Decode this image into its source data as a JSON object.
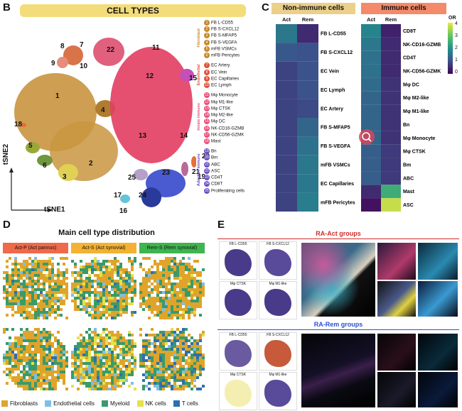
{
  "panel_b": {
    "letter": "B",
    "title": "CELL TYPES",
    "axis_y": "tSNE2",
    "axis_x": "tSNE1",
    "cluster_numbers": [
      "1",
      "2",
      "3",
      "4",
      "5",
      "6",
      "7",
      "8",
      "9",
      "10",
      "11",
      "12",
      "13",
      "14",
      "15",
      "16",
      "17",
      "18",
      "19",
      "20",
      "21",
      "22",
      "23",
      "24",
      "25"
    ],
    "groups": [
      {
        "name": "Fibroblast",
        "color": "#c88a2d",
        "items": [
          {
            "n": "1",
            "label": "FB L-CD55"
          },
          {
            "n": "2",
            "label": "FB S-CXCL12"
          },
          {
            "n": "3",
            "label": "FB S-MFAP5"
          },
          {
            "n": "4",
            "label": "FB S-VEGFA"
          },
          {
            "n": "5",
            "label": "mFB VSMCs"
          },
          {
            "n": "6",
            "label": "mFB Pericytes"
          }
        ]
      },
      {
        "name": "Endothelial",
        "color": "#e0533a",
        "items": [
          {
            "n": "7",
            "label": "EC Artery"
          },
          {
            "n": "8",
            "label": "EC Vein"
          },
          {
            "n": "9",
            "label": "EC Capillaries"
          },
          {
            "n": "10",
            "label": "EC Lymph"
          }
        ]
      },
      {
        "name": "Innate immune",
        "color": "#e8507a",
        "items": [
          {
            "n": "11",
            "label": "Mφ Monocyte"
          },
          {
            "n": "12",
            "label": "Mφ M1-like"
          },
          {
            "n": "13",
            "label": "Mφ CTSK"
          },
          {
            "n": "14",
            "label": "Mφ M2-like"
          },
          {
            "n": "15",
            "label": "Mφ DC"
          },
          {
            "n": "16",
            "label": "NK-CD16-GZMB"
          },
          {
            "n": "17",
            "label": "NK-CD56-GZMK"
          },
          {
            "n": "18",
            "label": "Mast"
          }
        ]
      },
      {
        "name": "Adaptive immune",
        "color": "#6a4fc4",
        "items": [
          {
            "n": "19",
            "label": "Bn"
          },
          {
            "n": "20",
            "label": "Bm"
          },
          {
            "n": "21",
            "label": "ABC"
          },
          {
            "n": "22",
            "label": "ASC"
          },
          {
            "n": "23",
            "label": "CD4T"
          },
          {
            "n": "24",
            "label": "CD8T"
          },
          {
            "n": "25",
            "label": "Proliferating cells"
          }
        ]
      }
    ]
  },
  "panel_c": {
    "letter": "C",
    "nonimmune_title": "Non-immune cells",
    "immune_title": "Immune cells",
    "col_act": "Act",
    "col_rem": "Rem",
    "colorbar_title": "OR",
    "colorbar_ticks": [
      "4",
      "3",
      "2",
      "1",
      "0"
    ],
    "chart_data": {
      "type": "heatmap",
      "columns": [
        "Act",
        "Rem"
      ],
      "nonimmune": {
        "rows": [
          "FB L-CD55",
          "FB S-CXCL12",
          "EC Vein",
          "EC Lymph",
          "EC Artery",
          "FB S-MFAP5",
          "FB S-VEGFA",
          "mFB VSMCs",
          "EC Capillaries",
          "mFB Pericytes"
        ],
        "values": [
          [
            1.6,
            0.5
          ],
          [
            1.1,
            1.0
          ],
          [
            0.8,
            1.0
          ],
          [
            0.8,
            1.0
          ],
          [
            0.8,
            0.9
          ],
          [
            0.8,
            1.3
          ],
          [
            0.8,
            1.5
          ],
          [
            0.8,
            1.6
          ],
          [
            0.8,
            1.6
          ],
          [
            0.8,
            1.7
          ]
        ]
      },
      "immune": {
        "rows": [
          "CD8T",
          "NK-CD16-GZMB",
          "CD4T",
          "NK-CD56-GZMK",
          "Mφ DC",
          "Mφ M2-like",
          "Mφ M1-like",
          "Bn",
          "Mφ Monocyte",
          "Mφ CTSK",
          "Bm",
          "ABC",
          "Mast",
          "ASC"
        ],
        "values": [
          [
            1.8,
            0.4
          ],
          [
            1.6,
            0.5
          ],
          [
            1.5,
            0.5
          ],
          [
            1.5,
            0.5
          ],
          [
            1.4,
            0.6
          ],
          [
            1.3,
            0.6
          ],
          [
            1.3,
            0.6
          ],
          [
            1.3,
            0.6
          ],
          [
            1.3,
            0.6
          ],
          [
            1.2,
            0.7
          ],
          [
            1.2,
            0.7
          ],
          [
            1.2,
            0.7
          ],
          [
            0.5,
            2.5
          ],
          [
            0.2,
            3.7
          ]
        ]
      },
      "colorbar_range": [
        0,
        4
      ]
    }
  },
  "panel_d": {
    "letter": "D",
    "title": "Main cell type distribution",
    "headers": [
      "Act-P (Act pannus)",
      "Act-S (Act synovial)",
      "Rem-S (Rem synovial)"
    ],
    "header_colors": [
      "#ef6a4a",
      "#f3b233",
      "#3fb54f"
    ],
    "legend": [
      {
        "label": "Fibroblasts",
        "color": "#e0a42a"
      },
      {
        "label": "Endothelial cells",
        "color": "#7fbfe6"
      },
      {
        "label": "Myeloid",
        "color": "#3a9a6a"
      },
      {
        "label": "NK cells",
        "color": "#e6e04a"
      },
      {
        "label": "T cells",
        "color": "#2c6fb3"
      }
    ]
  },
  "panel_e": {
    "letter": "E",
    "act_title": "RA-Act groups",
    "rem_title": "RA-Rem groups",
    "act_maps": [
      "FB L-CD55",
      "FB S-CXCL12",
      "Mφ CTSK",
      "Mφ M1-like"
    ],
    "rem_maps": [
      "FB L-CD55",
      "FB S-CXCL12",
      "Mφ CTSK",
      "Mφ M1-like"
    ]
  }
}
